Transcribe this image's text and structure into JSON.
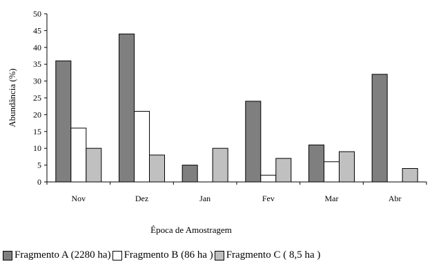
{
  "chart_data": {
    "type": "bar",
    "title": "",
    "xlabel": "Época de Amostragem",
    "ylabel": "Abundância (%)",
    "ylim": [
      0,
      50
    ],
    "yticks": [
      0,
      5,
      10,
      15,
      20,
      25,
      30,
      35,
      40,
      45,
      50
    ],
    "grid": false,
    "legend_position": "bottom-left",
    "categories": [
      "Nov",
      "Dez",
      "Jan",
      "Fev",
      "Mar",
      "Abr"
    ],
    "series": [
      {
        "name": "Fragmento A (2280 ha)",
        "color": "#7f7f7f",
        "values": [
          36,
          44,
          5,
          24,
          11,
          32
        ]
      },
      {
        "name": "Fragmento B (86 ha )",
        "color": "#ffffff",
        "values": [
          16,
          21,
          0,
          2,
          6,
          0
        ]
      },
      {
        "name": "Fragmento C ( 8,5 ha )",
        "color": "#c0c0c0",
        "values": [
          10,
          8,
          10,
          7,
          9,
          4
        ]
      }
    ]
  }
}
